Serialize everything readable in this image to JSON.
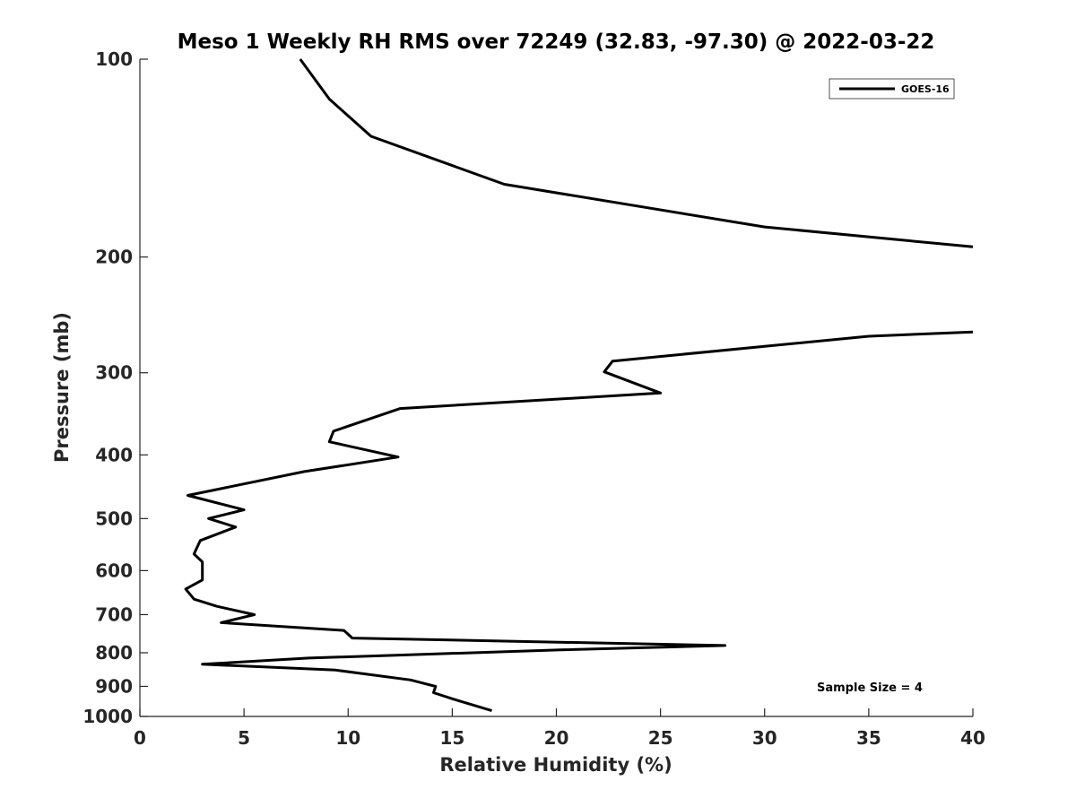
{
  "chart_data": {
    "type": "line",
    "title": "Meso 1 Weekly RH RMS over 72249 (32.83, -97.30) @ 2022-03-22",
    "xlabel": "Relative Humidity (%)",
    "ylabel": "Pressure (mb)",
    "xlim": [
      0,
      40
    ],
    "ylim": [
      100,
      1000
    ],
    "y_scale": "log",
    "y_reversed": true,
    "xticks": [
      0,
      5,
      10,
      15,
      20,
      25,
      30,
      35,
      40
    ],
    "yticks": [
      100,
      200,
      300,
      400,
      500,
      600,
      700,
      800,
      900,
      1000
    ],
    "grid": false,
    "legend_position": "top-right",
    "series": [
      {
        "name": "GOES-16",
        "color": "#000000",
        "segments": [
          [
            {
              "x": 7.7,
              "y": 100
            },
            {
              "x": 9.1,
              "y": 115
            },
            {
              "x": 11.1,
              "y": 131
            },
            {
              "x": 17.5,
              "y": 155
            },
            {
              "x": 30.0,
              "y": 180
            },
            {
              "x": 40.0,
              "y": 193
            }
          ],
          [
            {
              "x": 40.0,
              "y": 260
            },
            {
              "x": 35.0,
              "y": 264
            },
            {
              "x": 22.7,
              "y": 288
            },
            {
              "x": 22.3,
              "y": 299
            },
            {
              "x": 25.0,
              "y": 322
            },
            {
              "x": 12.5,
              "y": 340
            },
            {
              "x": 9.3,
              "y": 368
            },
            {
              "x": 9.1,
              "y": 382
            },
            {
              "x": 12.4,
              "y": 403
            },
            {
              "x": 7.9,
              "y": 424
            },
            {
              "x": 2.3,
              "y": 461
            },
            {
              "x": 5.0,
              "y": 485
            },
            {
              "x": 3.3,
              "y": 500
            },
            {
              "x": 4.6,
              "y": 515
            },
            {
              "x": 2.9,
              "y": 540
            },
            {
              "x": 2.6,
              "y": 566
            },
            {
              "x": 3.0,
              "y": 582
            },
            {
              "x": 3.0,
              "y": 620
            },
            {
              "x": 2.2,
              "y": 640
            },
            {
              "x": 2.6,
              "y": 663
            },
            {
              "x": 3.7,
              "y": 680
            },
            {
              "x": 5.5,
              "y": 700
            },
            {
              "x": 3.9,
              "y": 720
            },
            {
              "x": 9.8,
              "y": 740
            },
            {
              "x": 10.2,
              "y": 760
            },
            {
              "x": 28.1,
              "y": 780
            },
            {
              "x": 20.2,
              "y": 792
            },
            {
              "x": 8.1,
              "y": 815
            },
            {
              "x": 3.0,
              "y": 833
            },
            {
              "x": 9.4,
              "y": 850
            },
            {
              "x": 13.0,
              "y": 880
            },
            {
              "x": 14.2,
              "y": 900
            },
            {
              "x": 14.1,
              "y": 920
            },
            {
              "x": 15.0,
              "y": 940
            },
            {
              "x": 16.9,
              "y": 980
            }
          ]
        ]
      }
    ],
    "annotation": "Sample Size = 4"
  }
}
